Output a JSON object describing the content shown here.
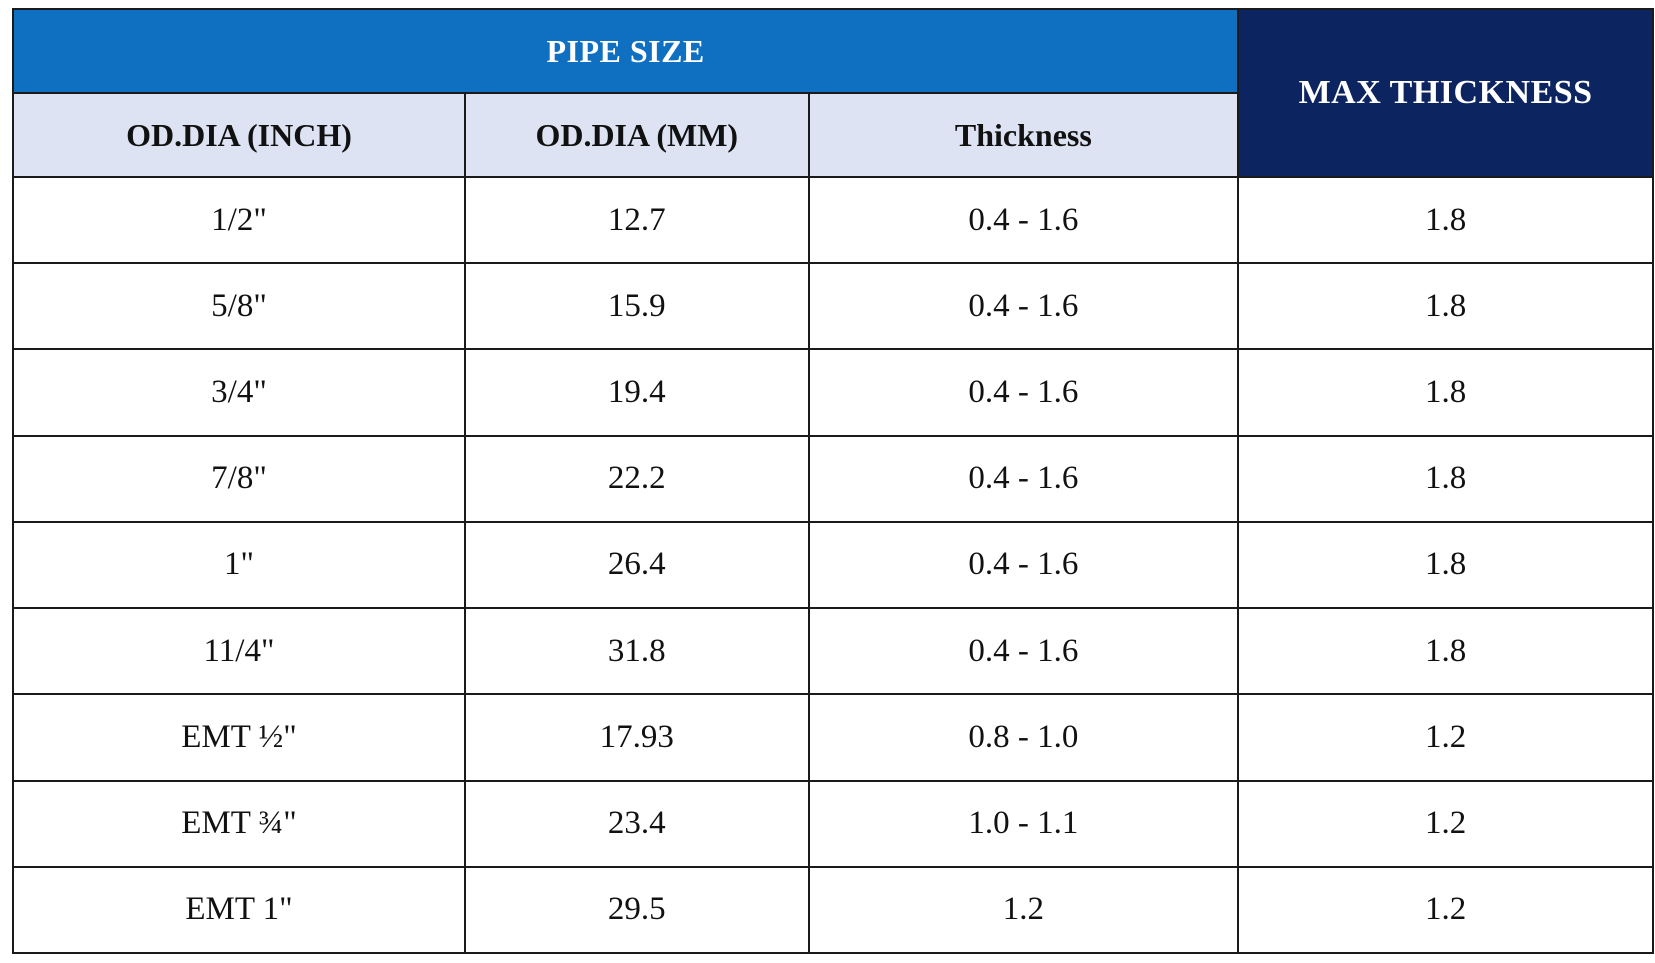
{
  "table": {
    "group_header": "PIPE SIZE",
    "max_header": "MAX THICKNESS",
    "columns": [
      "OD.DIA (INCH)",
      "OD.DIA (MM)",
      "Thickness"
    ],
    "rows": [
      [
        "1/2\"",
        "12.7",
        "0.4 - 1.6",
        "1.8"
      ],
      [
        "5/8\"",
        "15.9",
        "0.4 - 1.6",
        "1.8"
      ],
      [
        "3/4\"",
        "19.4",
        "0.4 - 1.6",
        "1.8"
      ],
      [
        "7/8\"",
        "22.2",
        "0.4 - 1.6",
        "1.8"
      ],
      [
        "1\"",
        "26.4",
        "0.4 - 1.6",
        "1.8"
      ],
      [
        "11/4\"",
        "31.8",
        "0.4 - 1.6",
        "1.8"
      ],
      [
        "EMT ½\"",
        "17.93",
        "0.8 - 1.0",
        "1.2"
      ],
      [
        "EMT ¾\"",
        "23.4",
        "1.0 - 1.1",
        "1.2"
      ],
      [
        "EMT 1\"",
        "29.5",
        "1.2",
        "1.2"
      ]
    ]
  },
  "colors": {
    "group_header_bg": "#0f6fc1",
    "max_header_bg": "#0c2561",
    "column_header_bg": "#dde3f3",
    "border": "#1a1a1a"
  }
}
